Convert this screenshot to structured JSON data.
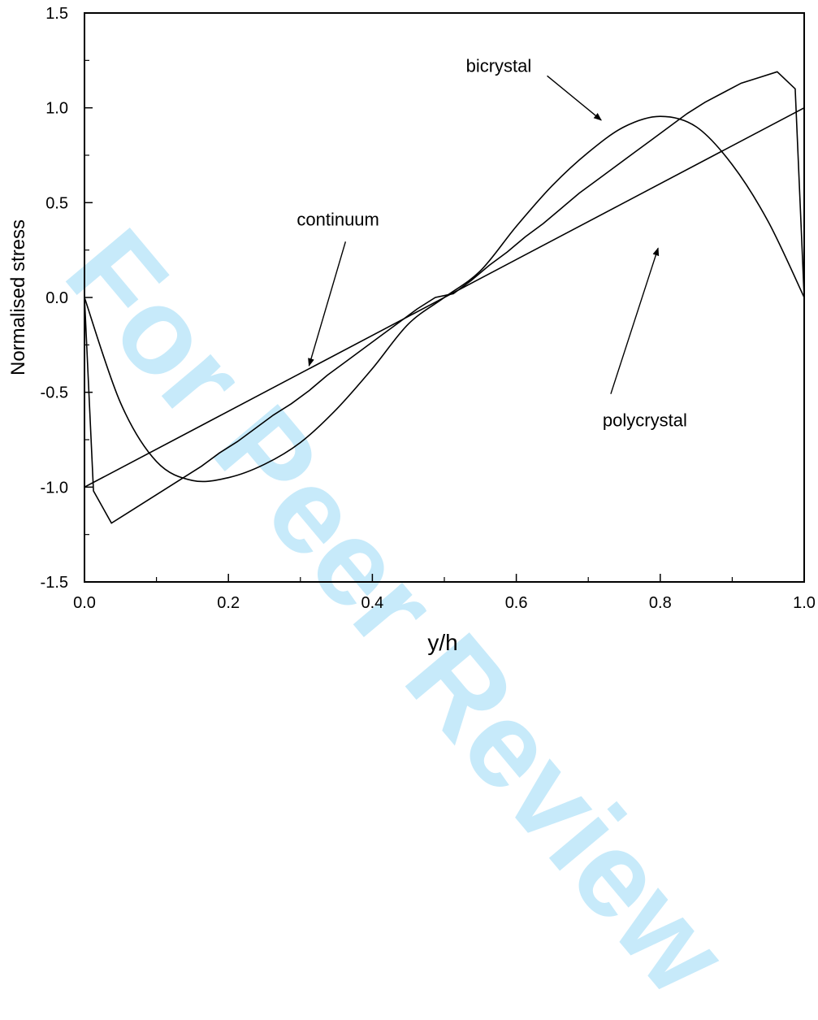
{
  "watermark": "For Peer Review",
  "chart_data": {
    "type": "line",
    "xlabel": "y/h",
    "ylabel": "Normalised stress",
    "xlim": [
      0.0,
      1.0
    ],
    "ylim": [
      -1.5,
      1.5
    ],
    "xticks": [
      "0.0",
      "0.2",
      "0.4",
      "0.6",
      "0.8",
      "1.0"
    ],
    "yticks": [
      "-1.5",
      "-1.0",
      "-0.5",
      "0.0",
      "0.5",
      "1.0",
      "1.5"
    ],
    "grid": false,
    "annotations": [
      {
        "text": "bicrystal",
        "text_xy": [
          0.53,
          1.19
        ],
        "arrow_to": [
          0.718,
          0.935
        ]
      },
      {
        "text": "continuum",
        "text_xy": [
          0.295,
          0.38
        ],
        "arrow_to": [
          0.312,
          -0.36
        ]
      },
      {
        "text": "polycrystal",
        "text_xy": [
          0.72,
          -0.68
        ],
        "arrow_to": [
          0.797,
          0.26
        ]
      }
    ],
    "series": [
      {
        "name": "continuum",
        "x": [
          0.0,
          1.0
        ],
        "y": [
          -1.0,
          1.0
        ]
      },
      {
        "name": "bicrystal",
        "x": [
          0.0,
          0.05,
          0.1,
          0.15,
          0.2,
          0.25,
          0.3,
          0.35,
          0.4,
          0.45,
          0.5,
          0.55,
          0.6,
          0.65,
          0.7,
          0.75,
          0.8,
          0.85,
          0.9,
          0.95,
          1.0
        ],
        "y": [
          0.0,
          -0.555,
          -0.865,
          -0.965,
          -0.95,
          -0.88,
          -0.765,
          -0.59,
          -0.375,
          -0.14,
          0.0,
          0.14,
          0.375,
          0.59,
          0.765,
          0.9,
          0.955,
          0.9,
          0.7,
          0.4,
          0.0
        ]
      },
      {
        "name": "polycrystal",
        "x": [
          0.0,
          0.0125,
          0.0375,
          0.0625,
          0.0875,
          0.1125,
          0.1375,
          0.1625,
          0.1875,
          0.2125,
          0.2375,
          0.2625,
          0.2875,
          0.3125,
          0.3375,
          0.3625,
          0.3875,
          0.4125,
          0.4375,
          0.4625,
          0.4875,
          0.5125,
          0.5375,
          0.5625,
          0.5875,
          0.6125,
          0.6375,
          0.6625,
          0.6875,
          0.7125,
          0.7375,
          0.7625,
          0.7875,
          0.8125,
          0.8375,
          0.8625,
          0.8875,
          0.9125,
          0.9375,
          0.9625,
          0.9875,
          1.0
        ],
        "y": [
          0.0,
          -1.02,
          -1.19,
          -1.13,
          -1.07,
          -1.01,
          -0.95,
          -0.89,
          -0.82,
          -0.76,
          -0.69,
          -0.62,
          -0.56,
          -0.49,
          -0.41,
          -0.34,
          -0.27,
          -0.2,
          -0.13,
          -0.06,
          0.0,
          0.02,
          0.09,
          0.17,
          0.24,
          0.32,
          0.39,
          0.47,
          0.55,
          0.62,
          0.69,
          0.76,
          0.83,
          0.9,
          0.97,
          1.03,
          1.08,
          1.13,
          1.16,
          1.19,
          1.1,
          0.0
        ]
      }
    ]
  }
}
